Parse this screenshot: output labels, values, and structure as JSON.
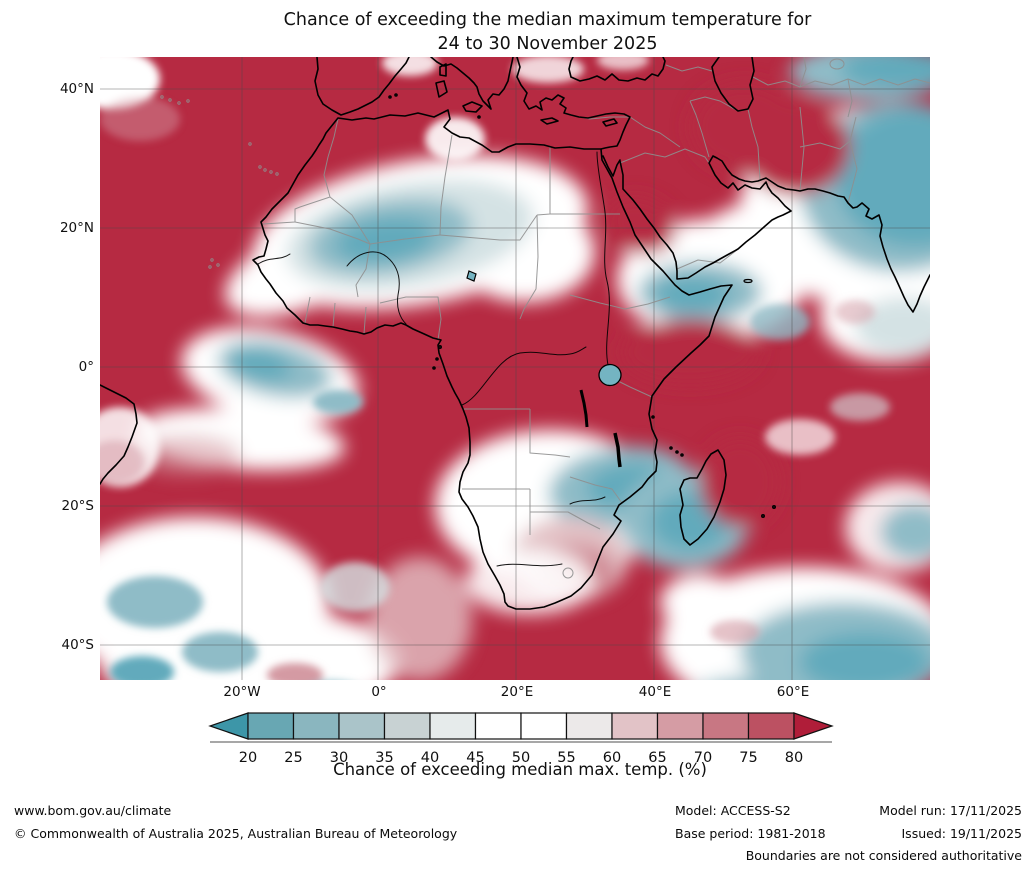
{
  "title": {
    "line1": "Chance of exceeding the median maximum temperature for",
    "line2": "24 to 30 November 2025"
  },
  "map": {
    "lat_ticks": [
      "40°N",
      "20°N",
      "0°",
      "20°S",
      "40°S"
    ],
    "lon_ticks": [
      "20°W",
      "0°",
      "20°E",
      "40°E",
      "60°E"
    ]
  },
  "colorbar": {
    "label": "Chance of exceeding median max. temp. (%)",
    "ticks": [
      "20",
      "25",
      "30",
      "35",
      "40",
      "45",
      "50",
      "55",
      "60",
      "65",
      "70",
      "75",
      "80"
    ],
    "colors": [
      "#3d96a8",
      "#68a7b3",
      "#8ab6bf",
      "#aac4c9",
      "#c8d2d3",
      "#e6ebeb",
      "#ffffff",
      "#ffffff",
      "#ece9e9",
      "#e2c3c7",
      "#d59ca4",
      "#c87783",
      "#bc5162",
      "#b01d39"
    ]
  },
  "footer": {
    "url": "www.bom.gov.au/climate",
    "copyright": "© Commonwealth of Australia 2025, Australian Bureau of Meteorology",
    "model": "Model: ACCESS-S2",
    "model_run": "Model run: 17/11/2025",
    "base_period": "Base period: 1981-2018",
    "issued": "Issued: 19/11/2025",
    "disclaimer": "Boundaries are not considered authoritative"
  },
  "chart_data": {
    "type": "heatmap",
    "title": "Chance of exceeding the median maximum temperature for 24 to 30 November 2025",
    "colorbar_label": "Chance of exceeding median max. temp. (%)",
    "unit": "percent",
    "scale_ticks": [
      20,
      25,
      30,
      35,
      40,
      45,
      50,
      55,
      60,
      65,
      70,
      75,
      80
    ],
    "scale_colors": [
      "#3d96a8",
      "#68a7b3",
      "#8ab6bf",
      "#aac4c9",
      "#c8d2d3",
      "#e6ebeb",
      "#ffffff",
      "#ffffff",
      "#ece9e9",
      "#e2c3c7",
      "#d59ca4",
      "#c87783",
      "#bc5162",
      "#b01d39"
    ],
    "scale_open_ended": {
      "below": 20,
      "above": 80
    },
    "map_extent": {
      "lon_min": -40,
      "lon_max": 80,
      "lat_min": -45,
      "lat_max": 45
    },
    "graticule_lats": [
      "40°N",
      "20°N",
      "0°",
      "20°S",
      "40°S"
    ],
    "graticule_lons": [
      "20°W",
      "0°",
      "20°E",
      "40°E",
      "60°E"
    ],
    "background_value_pct": ">80",
    "regions": [
      {
        "area": "Most of Africa, Mediterranean and Middle East land",
        "value_pct": ">80"
      },
      {
        "area": "Central Sahara (Algeria-Mali-Niger)",
        "value_pct": "20-40"
      },
      {
        "area": "Sahel band (Mauritania to Chad)",
        "value_pct": "40-55"
      },
      {
        "area": "Southern Arabian Peninsula (Yemen-Oman)",
        "value_pct": "25-45"
      },
      {
        "area": "India and north-east Arabian Sea",
        "value_pct": "20-40"
      },
      {
        "area": "Equatorial Atlantic off Gulf of Guinea",
        "value_pct": "25-45"
      },
      {
        "area": "Zambia-Tanzania-Malawi and Mozambique Channel",
        "value_pct": "25-45"
      },
      {
        "area": "Botswana-South Africa interior",
        "value_pct": "60-80"
      },
      {
        "area": "South Atlantic Ocean (south-west corner)",
        "value_pct": "30-55"
      },
      {
        "area": "Southern Indian Ocean (south-east corner)",
        "value_pct": "25-45"
      }
    ],
    "source": "Australian Bureau of Meteorology ACCESS-S2 outlook"
  }
}
